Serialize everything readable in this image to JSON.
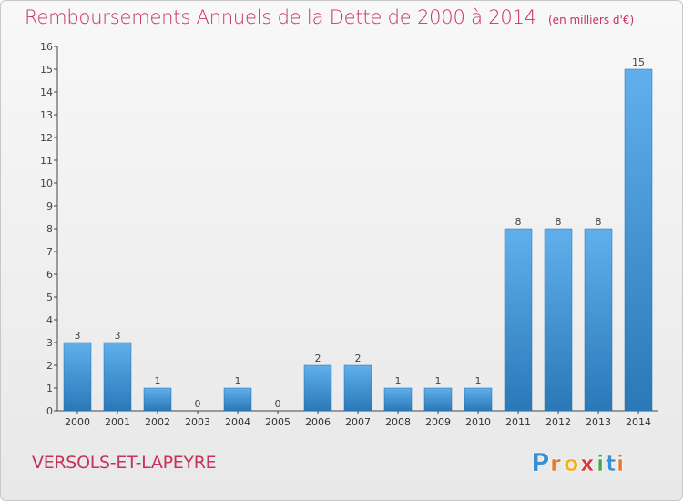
{
  "title": "Remboursements Annuels de la Dette de 2000 à 2014",
  "unit": "(en milliers d'€)",
  "commune": "VERSOLS-ET-LAPEYRE",
  "logo": {
    "text": "Proxiti",
    "letters": [
      "P",
      "r",
      "o",
      "x",
      "i",
      "t",
      "i"
    ],
    "colors": [
      "#3a8fd0",
      "#e8782a",
      "#f2b01e",
      "#d23c3c",
      "#4aa84a",
      "#3a8fd0",
      "#e8782a"
    ]
  },
  "colors": {
    "bar": "#3d8fd6",
    "title": "#c8325a"
  },
  "chart_data": {
    "type": "bar",
    "categories": [
      "2000",
      "2001",
      "2002",
      "2003",
      "2004",
      "2005",
      "2006",
      "2007",
      "2008",
      "2009",
      "2010",
      "2011",
      "2012",
      "2013",
      "2014"
    ],
    "values": [
      3,
      3,
      1,
      0,
      1,
      0,
      2,
      2,
      1,
      1,
      1,
      8,
      8,
      8,
      15
    ],
    "data_labels": [
      "3",
      "3",
      "1",
      "0",
      "1",
      "0",
      "2",
      "2",
      "1",
      "1",
      "1",
      "8",
      "8",
      "8",
      "15"
    ],
    "ylim": [
      0,
      16
    ],
    "yticks": [
      "0",
      "1",
      "2",
      "3",
      "4",
      "5",
      "6",
      "7",
      "8",
      "9",
      "10",
      "11",
      "12",
      "13",
      "14",
      "15",
      "16"
    ],
    "grid": false,
    "xlabel": "",
    "ylabel": ""
  }
}
